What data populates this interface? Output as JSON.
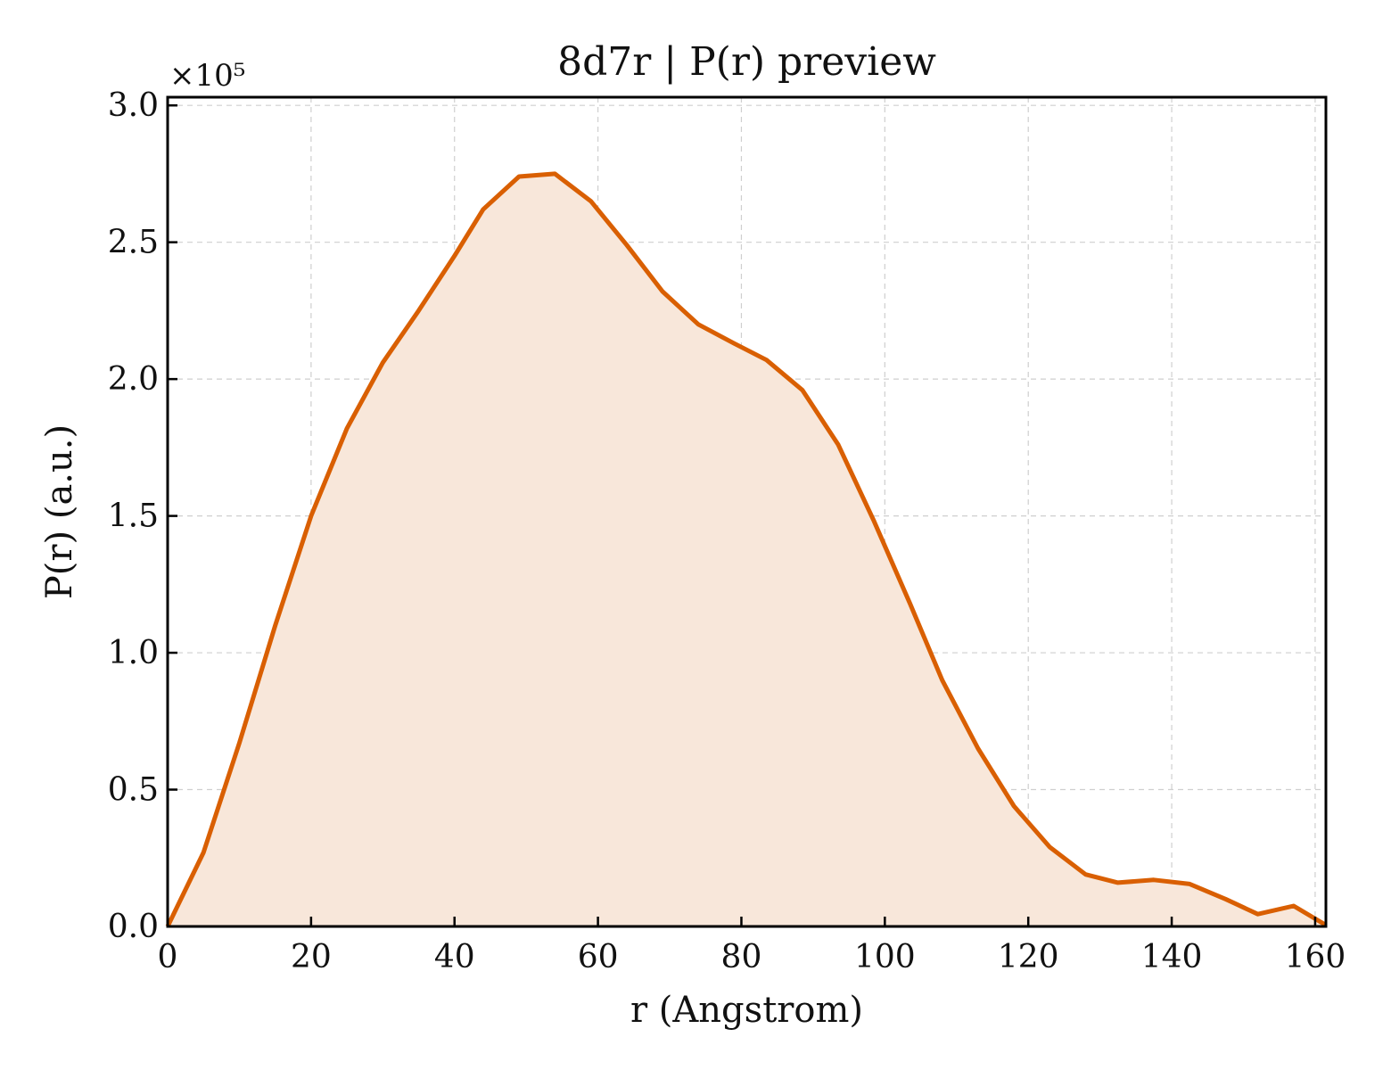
{
  "chart_data": {
    "type": "area",
    "title": "8d7r | P(r) preview",
    "xlabel": "r (Angstrom)",
    "ylabel": "P(r) (a.u.)",
    "y_multiplier_label": "×10⁵",
    "xlim": [
      0,
      161.5
    ],
    "ylim": [
      0,
      3.03
    ],
    "x_ticks": [
      0,
      20,
      40,
      60,
      80,
      100,
      120,
      140,
      160
    ],
    "x_tick_labels": [
      "0",
      "20",
      "40",
      "60",
      "80",
      "100",
      "120",
      "140",
      "160"
    ],
    "y_ticks": [
      0,
      0.5,
      1.0,
      1.5,
      2.0,
      2.5,
      3.0
    ],
    "y_tick_labels": [
      "0.0",
      "0.5",
      "1.0",
      "1.5",
      "2.0",
      "2.5",
      "3.0"
    ],
    "grid": true,
    "line_color": "#d95f02",
    "fill_color": "#f8e7da",
    "series": [
      {
        "x": [
          0,
          5,
          10,
          15,
          20,
          25,
          30,
          35,
          40,
          44,
          49,
          54,
          59,
          64,
          69,
          74,
          79,
          83.5,
          88.5,
          93.5,
          98.5,
          103.5,
          108,
          113,
          118,
          123,
          128,
          132.5,
          137.5,
          142.5,
          147.5,
          152,
          157,
          161.5
        ],
        "y": [
          0.0,
          0.27,
          0.67,
          1.1,
          1.5,
          1.82,
          2.06,
          2.25,
          2.45,
          2.62,
          2.74,
          2.75,
          2.65,
          2.49,
          2.32,
          2.2,
          2.13,
          2.07,
          1.96,
          1.76,
          1.48,
          1.18,
          0.9,
          0.65,
          0.44,
          0.29,
          0.19,
          0.16,
          0.17,
          0.155,
          0.1,
          0.045,
          0.075,
          0.005
        ]
      }
    ]
  }
}
